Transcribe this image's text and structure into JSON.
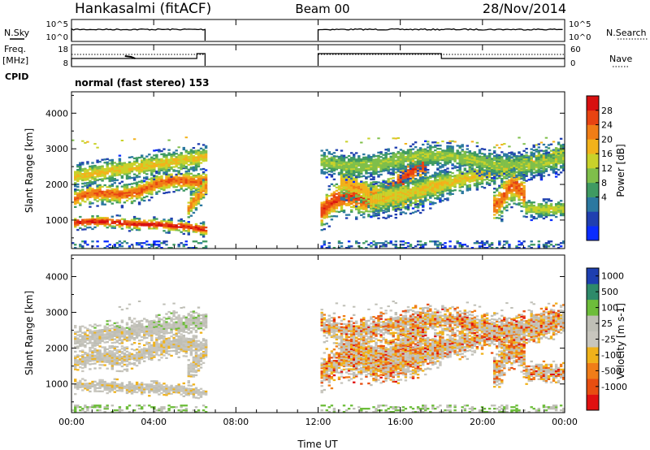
{
  "header": {
    "title_left": "Hankasalmi (fitACF)",
    "title_center": "Beam 00",
    "title_right": "28/Nov/2014"
  },
  "left_labels": {
    "nsky": "N.Sky",
    "freq": "Freq.",
    "mhz": "[MHz]",
    "cpid": "CPID"
  },
  "right_labels": {
    "nsearch": "N.Search",
    "nave": "Nave"
  },
  "cpid_text": "normal (fast stereo) 153",
  "colors": {
    "power": [
      "#0a2cff",
      "#203fb0",
      "#2b78a0",
      "#3f9a62",
      "#7fbf4a",
      "#c9d22a",
      "#f2b21b",
      "#f07d16",
      "#e84412",
      "#d81010"
    ],
    "velocity": [
      "#1d3fb0",
      "#2e8a6a",
      "#6dbd3a",
      "#bfbfb6",
      "#c8c6be",
      "#f0b21a",
      "#f07d18",
      "#e84e10",
      "#e01010"
    ]
  },
  "chart_data": [
    {
      "type": "line",
      "name": "status-nsky-nsearch",
      "ylabel_left": [
        "10^5",
        "10^0"
      ],
      "ylabel_right": [
        "10^5",
        "10^0"
      ],
      "gap_hours": [
        6.5,
        12.0
      ]
    },
    {
      "type": "line",
      "name": "status-freq-nave",
      "yticks_left": [
        "18",
        "8"
      ],
      "yticks_right": [
        "60",
        "0"
      ]
    },
    {
      "type": "heatmap",
      "name": "power",
      "ylabel": "Slant Range [km]",
      "yticks": [
        "4000",
        "3000",
        "2000",
        "1000"
      ],
      "xticks": [
        "00:00",
        "04:00",
        "08:00",
        "12:00",
        "16:00",
        "20:00",
        "00:00"
      ],
      "xlabel": "Time UT",
      "colorbar_label": "Power [dB]",
      "colorbar_ticks": [
        "28",
        "24",
        "20",
        "16",
        "12",
        "8",
        "4"
      ]
    },
    {
      "type": "heatmap",
      "name": "velocity",
      "ylabel": "Slant Range [km]",
      "yticks": [
        "4000",
        "3000",
        "2000",
        "1000"
      ],
      "xticks": [
        "00:00",
        "04:00",
        "08:00",
        "12:00",
        "16:00",
        "20:00",
        "00:00"
      ],
      "xlabel": "Time UT",
      "colorbar_label": "Velocity [m s-1]",
      "colorbar_ticks": [
        "1000",
        "500",
        "100",
        "25",
        "-25",
        "-100",
        "-500",
        "-1000"
      ]
    }
  ]
}
